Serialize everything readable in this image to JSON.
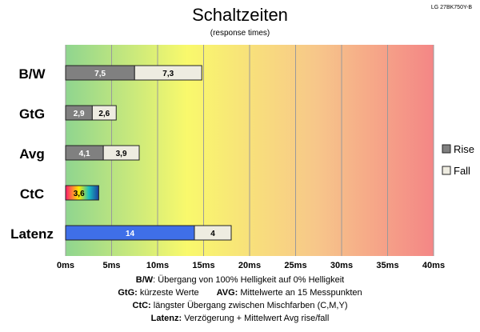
{
  "header": {
    "title": "Schaltzeiten",
    "subtitle": "(response times)",
    "model": "LG 27BK750Y-B"
  },
  "chart_data": {
    "type": "bar",
    "orientation": "horizontal",
    "stacked": true,
    "categories": [
      "B/W",
      "GtG",
      "Avg",
      "CtC",
      "Latenz"
    ],
    "series": [
      {
        "name": "Rise",
        "values": [
          7.5,
          2.9,
          4.1,
          null,
          14
        ]
      },
      {
        "name": "Fall",
        "values": [
          7.3,
          2.6,
          3.9,
          null,
          4
        ]
      }
    ],
    "combined": [
      {
        "category": "CtC",
        "value": 3.6,
        "label": "3,6"
      },
      {
        "category": "Latenz",
        "series": "Rise",
        "label": "14"
      }
    ],
    "data_labels": [
      [
        "7,5",
        "7,3"
      ],
      [
        "2,9",
        "2,6"
      ],
      [
        "4,1",
        "3,9"
      ],
      [
        "3,6"
      ],
      [
        "14",
        "4"
      ]
    ],
    "xlim": [
      0,
      40
    ],
    "x_ticks": [
      0,
      5,
      10,
      15,
      20,
      25,
      30,
      35,
      40
    ],
    "x_tick_labels": [
      "0ms",
      "5ms",
      "10ms",
      "15ms",
      "20ms",
      "25ms",
      "30ms",
      "35ms",
      "40ms"
    ],
    "grid": true,
    "legend": {
      "position": "right",
      "entries": [
        "Rise",
        "Fall"
      ]
    },
    "background_gradient": [
      "#8fd58f",
      "#f9f96c",
      "#f7c78a",
      "#f48686"
    ],
    "colors": {
      "rise": "#808080",
      "fall": "#eeece1",
      "latency_rise": "#3f6fe8",
      "ctc_gradient": [
        "#ff1a6e",
        "#ffea00",
        "#1ac0c0",
        "#1a3fa0"
      ]
    }
  },
  "footer": {
    "line1_key": "B/W",
    "line1_text": ":  Übergang von 100% Helligkeit auf 0% Helligkeit",
    "line2_key1": "GtG:",
    "line2_text1": " kürzeste  Werte",
    "line2_key2": "AVG:",
    "line2_text2": " Mittelwerte  an 15 Messpunkten",
    "line3_key": "CtC:",
    "line3_text": " längster Übergang  zwischen Mischfarben  (C,M,Y)",
    "line4_key": "Latenz:",
    "line4_text": " Verzögerung  + Mittelwert  Avg rise/fall"
  }
}
